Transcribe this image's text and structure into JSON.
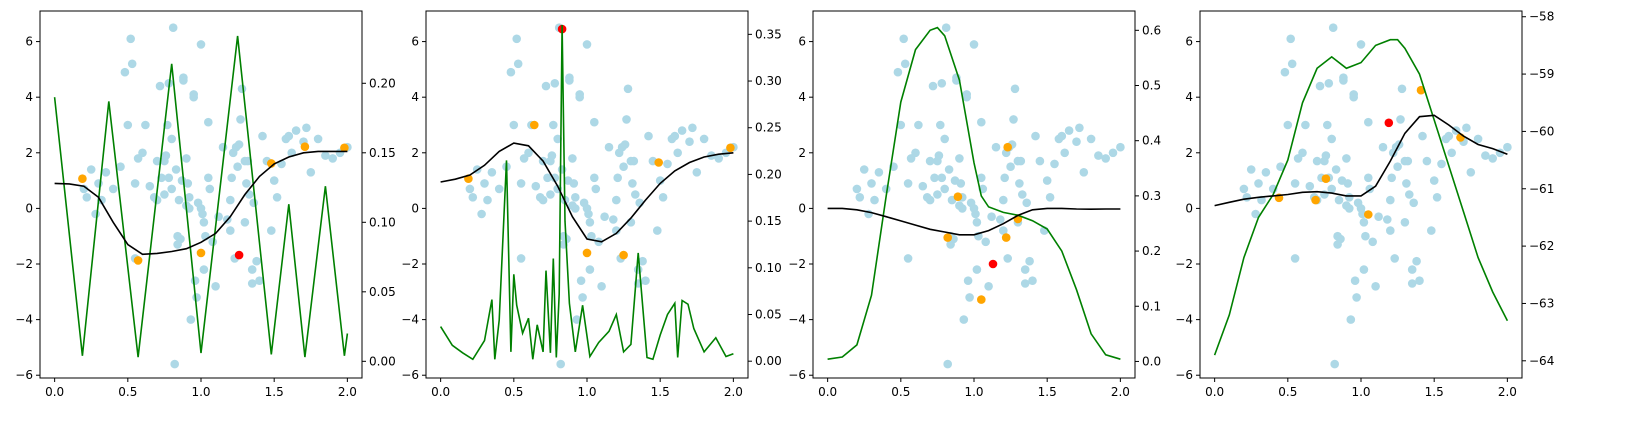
{
  "figure": {
    "title": ""
  },
  "chart_data": [
    {
      "type": "scatter",
      "xlim": [
        -0.1,
        2.1
      ],
      "ylim": [
        -6.1,
        7.1
      ],
      "y2lim": [
        -0.012,
        0.252
      ],
      "xticks": [
        0.0,
        0.5,
        1.0,
        1.5,
        2.0
      ],
      "yticks": [
        -6,
        -4,
        -2,
        0,
        2,
        4,
        6
      ],
      "y2ticks": [
        0.0,
        0.05,
        0.1,
        0.15,
        0.2
      ],
      "y2tick_format": 2,
      "grid": false,
      "series": [
        {
          "color": "#add8e6",
          "axis": "left",
          "points": "shared_light"
        },
        {
          "color": "#ffa500",
          "axis": "left",
          "x": [
            0.19,
            0.57,
            1.0,
            1.48,
            1.71,
            1.98
          ],
          "y": [
            1.07,
            -1.87,
            -1.6,
            1.62,
            2.22,
            2.18
          ]
        },
        {
          "color": "#ff0000",
          "axis": "left",
          "x": [
            1.26
          ],
          "y": [
            -1.68
          ]
        },
        {
          "color": "#008000",
          "axis": "right",
          "kind": "line",
          "x": [
            0.0,
            0.19,
            0.37,
            0.57,
            0.8,
            1.0,
            1.25,
            1.48,
            1.6,
            1.71,
            1.85,
            1.98,
            2.0
          ],
          "y": [
            0.19,
            0.004,
            0.187,
            0.003,
            0.214,
            0.006,
            0.234,
            0.005,
            0.113,
            0.003,
            0.126,
            0.004,
            0.02
          ]
        },
        {
          "color": "#000000",
          "axis": "left",
          "kind": "line",
          "x": [
            0.0,
            0.1,
            0.2,
            0.3,
            0.4,
            0.5,
            0.6,
            0.7,
            0.8,
            0.9,
            1.0,
            1.1,
            1.2,
            1.3,
            1.4,
            1.5,
            1.6,
            1.7,
            1.8,
            1.9,
            2.0
          ],
          "y": [
            0.9,
            0.88,
            0.8,
            0.4,
            -0.5,
            -1.3,
            -1.65,
            -1.62,
            -1.55,
            -1.45,
            -1.22,
            -0.9,
            -0.3,
            0.5,
            1.15,
            1.6,
            1.85,
            2.0,
            2.05,
            2.05,
            2.05
          ]
        }
      ]
    },
    {
      "type": "scatter",
      "xlim": [
        -0.1,
        2.1
      ],
      "ylim": [
        -6.1,
        7.1
      ],
      "y2lim": [
        -0.018,
        0.375
      ],
      "xticks": [
        0.0,
        0.5,
        1.0,
        1.5,
        2.0
      ],
      "yticks": [
        -6,
        -4,
        -2,
        0,
        2,
        4,
        6
      ],
      "y2ticks": [
        0.0,
        0.05,
        0.1,
        0.15,
        0.2,
        0.25,
        0.3,
        0.35
      ],
      "y2tick_format": 2,
      "grid": false,
      "series": [
        {
          "color": "#add8e6",
          "axis": "left",
          "points": "shared_light"
        },
        {
          "color": "#ffa500",
          "axis": "left",
          "x": [
            0.19,
            0.64,
            1.0,
            1.25,
            1.49,
            1.98
          ],
          "y": [
            1.07,
            3.0,
            -1.6,
            -1.68,
            1.65,
            2.18
          ]
        },
        {
          "color": "#ff0000",
          "axis": "left",
          "x": [
            0.83
          ],
          "y": [
            6.45
          ]
        },
        {
          "color": "#008000",
          "axis": "right",
          "kind": "line",
          "x": [
            0.0,
            0.08,
            0.15,
            0.22,
            0.3,
            0.35,
            0.37,
            0.4,
            0.45,
            0.48,
            0.5,
            0.52,
            0.56,
            0.6,
            0.63,
            0.66,
            0.7,
            0.72,
            0.75,
            0.77,
            0.79,
            0.81,
            0.83,
            0.85,
            0.88,
            0.92,
            0.97,
            1.02,
            1.08,
            1.15,
            1.2,
            1.25,
            1.3,
            1.35,
            1.41,
            1.45,
            1.5,
            1.55,
            1.6,
            1.62,
            1.65,
            1.69,
            1.73,
            1.8,
            1.88,
            1.95,
            2.0
          ],
          "y": [
            0.037,
            0.017,
            0.009,
            0.002,
            0.022,
            0.066,
            0.002,
            0.044,
            0.215,
            0.01,
            0.093,
            0.06,
            0.03,
            0.046,
            0.002,
            0.039,
            0.01,
            0.097,
            0.009,
            0.11,
            0.004,
            0.072,
            0.36,
            0.15,
            0.062,
            0.01,
            0.06,
            0.005,
            0.02,
            0.032,
            0.05,
            0.01,
            0.018,
            0.116,
            0.004,
            0.002,
            0.028,
            0.05,
            0.062,
            0.004,
            0.065,
            0.061,
            0.035,
            0.01,
            0.025,
            0.005,
            0.008
          ]
        },
        {
          "color": "#000000",
          "axis": "left",
          "kind": "line",
          "x": [
            0.0,
            0.1,
            0.2,
            0.3,
            0.4,
            0.5,
            0.6,
            0.7,
            0.8,
            0.9,
            1.0,
            1.1,
            1.2,
            1.3,
            1.4,
            1.5,
            1.6,
            1.7,
            1.8,
            1.9,
            2.0
          ],
          "y": [
            0.95,
            1.05,
            1.2,
            1.55,
            2.05,
            2.35,
            2.25,
            1.7,
            0.8,
            -0.3,
            -1.1,
            -1.2,
            -0.9,
            -0.35,
            0.3,
            0.9,
            1.35,
            1.65,
            1.85,
            1.95,
            2.0
          ]
        }
      ]
    },
    {
      "type": "scatter",
      "xlim": [
        -0.1,
        2.1
      ],
      "ylim": [
        -6.1,
        7.1
      ],
      "y2lim": [
        -0.03,
        0.635
      ],
      "xticks": [
        0.0,
        0.5,
        1.0,
        1.5,
        2.0
      ],
      "yticks": [
        -6,
        -4,
        -2,
        0,
        2,
        4,
        6
      ],
      "y2ticks": [
        0.0,
        0.1,
        0.2,
        0.3,
        0.4,
        0.5,
        0.6
      ],
      "y2tick_format": 1,
      "grid": false,
      "series": [
        {
          "color": "#add8e6",
          "axis": "left",
          "points": "shared_light"
        },
        {
          "color": "#ffa500",
          "axis": "left",
          "x": [
            0.82,
            0.89,
            1.05,
            1.22,
            1.23,
            1.3
          ],
          "y": [
            -1.05,
            0.42,
            -3.28,
            -1.05,
            2.2,
            -0.38
          ]
        },
        {
          "color": "#ff0000",
          "axis": "left",
          "x": [
            1.13
          ],
          "y": [
            -2.0
          ]
        },
        {
          "color": "#008000",
          "axis": "right",
          "kind": "line",
          "x": [
            0.0,
            0.1,
            0.2,
            0.3,
            0.4,
            0.5,
            0.6,
            0.7,
            0.75,
            0.8,
            0.9,
            1.0,
            1.05,
            1.1,
            1.2,
            1.3,
            1.4,
            1.5,
            1.6,
            1.7,
            1.8,
            1.9,
            2.0
          ],
          "y": [
            0.004,
            0.008,
            0.03,
            0.12,
            0.3,
            0.47,
            0.565,
            0.6,
            0.605,
            0.59,
            0.51,
            0.36,
            0.3,
            0.28,
            0.27,
            0.265,
            0.255,
            0.24,
            0.2,
            0.13,
            0.05,
            0.012,
            0.004
          ]
        },
        {
          "color": "#000000",
          "axis": "left",
          "kind": "line",
          "x": [
            0.0,
            0.1,
            0.2,
            0.3,
            0.4,
            0.5,
            0.6,
            0.7,
            0.8,
            0.9,
            1.0,
            1.1,
            1.2,
            1.3,
            1.4,
            1.5,
            1.6,
            1.7,
            1.8,
            1.9,
            2.0
          ],
          "y": [
            0.0,
            0.0,
            -0.05,
            -0.15,
            -0.3,
            -0.45,
            -0.6,
            -0.75,
            -0.85,
            -0.95,
            -0.95,
            -0.8,
            -0.55,
            -0.25,
            -0.05,
            0.0,
            0.0,
            -0.02,
            -0.03,
            -0.02,
            -0.02
          ]
        }
      ]
    },
    {
      "type": "scatter",
      "xlim": [
        -0.1,
        2.1
      ],
      "ylim": [
        -6.1,
        7.1
      ],
      "y2lim": [
        -64.3,
        -57.9
      ],
      "xticks": [
        0.0,
        0.5,
        1.0,
        1.5,
        2.0
      ],
      "yticks": [
        -6,
        -4,
        -2,
        0,
        2,
        4,
        6
      ],
      "y2ticks": [
        -64,
        -63,
        -62,
        -61,
        -60,
        -59,
        -58
      ],
      "y2tick_format": 0,
      "grid": false,
      "series": [
        {
          "color": "#add8e6",
          "axis": "left",
          "points": "shared_light"
        },
        {
          "color": "#ffa500",
          "axis": "left",
          "x": [
            0.44,
            0.69,
            0.76,
            1.05,
            1.41,
            1.68
          ],
          "y": [
            0.38,
            0.3,
            1.07,
            -0.22,
            4.25,
            2.55
          ]
        },
        {
          "color": "#ff0000",
          "axis": "left",
          "x": [
            1.19
          ],
          "y": [
            3.08
          ]
        },
        {
          "color": "#008000",
          "axis": "right",
          "kind": "line",
          "x": [
            0.0,
            0.1,
            0.2,
            0.3,
            0.4,
            0.5,
            0.6,
            0.7,
            0.8,
            0.9,
            1.0,
            1.1,
            1.2,
            1.25,
            1.3,
            1.4,
            1.5,
            1.6,
            1.7,
            1.8,
            1.9,
            2.0
          ],
          "y": [
            -63.9,
            -63.2,
            -62.2,
            -61.5,
            -61.1,
            -60.5,
            -59.5,
            -58.9,
            -58.7,
            -58.9,
            -58.8,
            -58.5,
            -58.4,
            -58.4,
            -58.55,
            -59.0,
            -59.8,
            -60.6,
            -61.4,
            -62.2,
            -62.8,
            -63.3
          ]
        },
        {
          "color": "#000000",
          "axis": "left",
          "kind": "line",
          "x": [
            0.0,
            0.1,
            0.2,
            0.3,
            0.4,
            0.5,
            0.6,
            0.7,
            0.8,
            0.9,
            1.0,
            1.1,
            1.2,
            1.3,
            1.4,
            1.5,
            1.6,
            1.7,
            1.8,
            1.9,
            2.0
          ],
          "y": [
            0.1,
            0.22,
            0.33,
            0.4,
            0.45,
            0.5,
            0.58,
            0.6,
            0.55,
            0.45,
            0.45,
            0.8,
            1.7,
            2.7,
            3.3,
            3.35,
            3.0,
            2.6,
            2.3,
            2.15,
            1.95
          ]
        }
      ]
    }
  ],
  "shared_light": {
    "x": [
      0.2,
      0.22,
      0.25,
      0.28,
      0.3,
      0.32,
      0.35,
      0.4,
      0.45,
      0.48,
      0.5,
      0.52,
      0.53,
      0.55,
      0.55,
      0.57,
      0.6,
      0.62,
      0.65,
      0.68,
      0.7,
      0.7,
      0.72,
      0.73,
      0.75,
      0.75,
      0.76,
      0.77,
      0.78,
      0.78,
      0.8,
      0.8,
      0.81,
      0.82,
      0.83,
      0.84,
      0.85,
      0.86,
      0.87,
      0.88,
      0.88,
      0.9,
      0.9,
      0.91,
      0.92,
      0.93,
      0.95,
      0.95,
      0.96,
      0.97,
      0.98,
      1.0,
      1.0,
      1.01,
      1.02,
      1.03,
      1.05,
      1.05,
      1.06,
      1.08,
      1.1,
      1.12,
      1.15,
      1.18,
      1.2,
      1.2,
      1.21,
      1.22,
      1.23,
      1.24,
      1.25,
      1.26,
      1.27,
      1.28,
      1.3,
      1.3,
      1.31,
      1.32,
      1.33,
      1.35,
      1.35,
      1.36,
      1.38,
      1.4,
      1.42,
      1.45,
      1.48,
      1.5,
      1.52,
      1.55,
      1.58,
      1.6,
      1.62,
      1.65,
      1.7,
      1.72,
      1.75,
      1.8,
      1.85,
      1.9,
      1.95,
      2.0,
      1.02,
      0.92,
      0.84
    ],
    "y": [
      0.7,
      0.4,
      1.4,
      -0.2,
      0.9,
      0.3,
      1.3,
      0.7,
      1.5,
      4.9,
      3.0,
      6.1,
      5.2,
      -1.8,
      0.9,
      1.8,
      2.0,
      3.0,
      0.8,
      0.4,
      0.3,
      1.7,
      4.4,
      1.1,
      1.7,
      0.5,
      1.9,
      3.0,
      4.5,
      1.1,
      2.5,
      0.7,
      6.5,
      -5.6,
      1.4,
      -1.3,
      0.3,
      -1.1,
      1.0,
      4.6,
      4.7,
      0.1,
      1.8,
      0.9,
      0.4,
      -4.0,
      4.1,
      4.0,
      -2.6,
      -3.2,
      0.2,
      5.9,
      0.0,
      -0.2,
      -0.5,
      -1.0,
      1.1,
      3.1,
      0.7,
      -1.2,
      -2.8,
      -0.3,
      2.2,
      -0.4,
      -0.8,
      0.3,
      1.1,
      2.0,
      -1.8,
      2.2,
      1.5,
      2.3,
      3.2,
      4.3,
      1.7,
      -0.5,
      0.9,
      1.7,
      0.5,
      -2.7,
      -2.2,
      0.2,
      -1.9,
      -2.6,
      2.6,
      1.7,
      -0.8,
      1.0,
      0.4,
      1.6,
      2.5,
      2.6,
      2.0,
      2.8,
      2.4,
      2.9,
      1.3,
      2.5,
      1.9,
      1.8,
      2.0,
      2.2,
      -2.2,
      0.0,
      -1.0
    ]
  }
}
